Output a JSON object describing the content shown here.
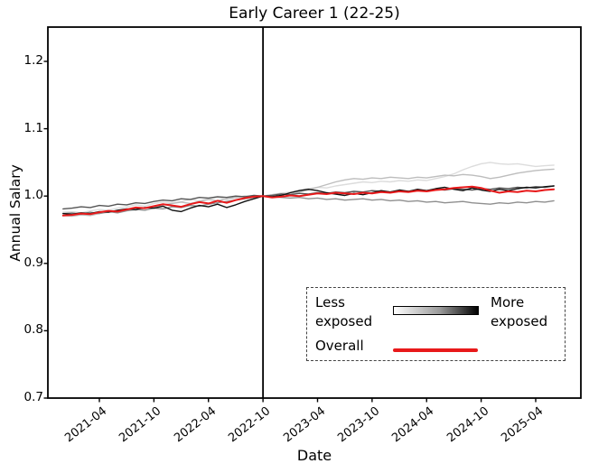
{
  "chart_data": {
    "type": "line",
    "title": "Early Career 1 (22-25)",
    "xlabel": "Date",
    "ylabel": "Annual Salary",
    "ylim": [
      0.7,
      1.25
    ],
    "yticks": [
      0.7,
      0.8,
      0.9,
      1.0,
      1.1,
      1.2
    ],
    "xticks": [
      "2021-04",
      "2021-10",
      "2022-04",
      "2022-10",
      "2023-04",
      "2023-10",
      "2024-04",
      "2024-10",
      "2025-04"
    ],
    "vline_at": "2022-10",
    "grid": false,
    "x": [
      "2020-12",
      "2021-01",
      "2021-02",
      "2021-03",
      "2021-04",
      "2021-05",
      "2021-06",
      "2021-07",
      "2021-08",
      "2021-09",
      "2021-10",
      "2021-11",
      "2021-12",
      "2022-01",
      "2022-02",
      "2022-03",
      "2022-04",
      "2022-05",
      "2022-06",
      "2022-07",
      "2022-08",
      "2022-09",
      "2022-10",
      "2022-11",
      "2022-12",
      "2023-01",
      "2023-02",
      "2023-03",
      "2023-04",
      "2023-05",
      "2023-06",
      "2023-07",
      "2023-08",
      "2023-09",
      "2023-10",
      "2023-11",
      "2023-12",
      "2024-01",
      "2024-02",
      "2024-03",
      "2024-04",
      "2024-05",
      "2024-06",
      "2024-07",
      "2024-08",
      "2024-09",
      "2024-10",
      "2024-11",
      "2024-12",
      "2025-01",
      "2025-02",
      "2025-03",
      "2025-04",
      "2025-05",
      "2025-06"
    ],
    "series": [
      {
        "name": "exposure-quintile-1-least",
        "color": "#dcdcdc",
        "width": 1.4,
        "values": [
          0.976,
          0.977,
          0.975,
          0.978,
          0.98,
          0.979,
          0.982,
          0.984,
          0.987,
          0.985,
          0.989,
          0.991,
          0.99,
          0.992,
          0.995,
          0.993,
          0.996,
          0.998,
          0.995,
          0.997,
          0.999,
          1.001,
          1.0,
          1.002,
          1.004,
          1.006,
          1.009,
          1.011,
          1.013,
          1.012,
          1.015,
          1.017,
          1.019,
          1.021,
          1.02,
          1.022,
          1.021,
          1.023,
          1.022,
          1.024,
          1.023,
          1.026,
          1.029,
          1.033,
          1.039,
          1.044,
          1.048,
          1.05,
          1.048,
          1.047,
          1.048,
          1.046,
          1.044,
          1.045,
          1.046
        ]
      },
      {
        "name": "exposure-quintile-2",
        "color": "#bdbdbd",
        "width": 1.4,
        "values": [
          0.971,
          0.97,
          0.972,
          0.971,
          0.974,
          0.976,
          0.978,
          0.98,
          0.979,
          0.982,
          0.984,
          0.987,
          0.989,
          0.991,
          0.989,
          0.992,
          0.995,
          0.993,
          0.996,
          0.998,
          1.0,
          0.999,
          1.0,
          1.002,
          1.004,
          1.003,
          1.006,
          1.009,
          1.013,
          1.017,
          1.021,
          1.024,
          1.026,
          1.025,
          1.027,
          1.026,
          1.028,
          1.027,
          1.026,
          1.028,
          1.027,
          1.029,
          1.031,
          1.03,
          1.032,
          1.031,
          1.029,
          1.026,
          1.028,
          1.031,
          1.034,
          1.036,
          1.038,
          1.039,
          1.04
        ]
      },
      {
        "name": "exposure-quintile-3",
        "color": "#8f8f8f",
        "width": 1.4,
        "values": [
          0.974,
          0.975,
          0.973,
          0.976,
          0.974,
          0.977,
          0.975,
          0.978,
          0.98,
          0.979,
          0.982,
          0.981,
          0.984,
          0.983,
          0.986,
          0.985,
          0.988,
          0.99,
          0.992,
          0.994,
          0.996,
          0.998,
          1.0,
          0.999,
          0.998,
          0.997,
          0.998,
          0.996,
          0.997,
          0.995,
          0.996,
          0.994,
          0.995,
          0.996,
          0.994,
          0.995,
          0.993,
          0.994,
          0.992,
          0.993,
          0.991,
          0.992,
          0.99,
          0.991,
          0.992,
          0.99,
          0.989,
          0.988,
          0.99,
          0.989,
          0.991,
          0.99,
          0.992,
          0.991,
          0.993
        ]
      },
      {
        "name": "exposure-quintile-4",
        "color": "#555555",
        "width": 1.4,
        "values": [
          0.981,
          0.982,
          0.984,
          0.983,
          0.986,
          0.985,
          0.988,
          0.987,
          0.99,
          0.989,
          0.992,
          0.994,
          0.993,
          0.996,
          0.995,
          0.998,
          0.997,
          0.999,
          0.998,
          1.0,
          0.999,
          1.001,
          1.0,
          1.001,
          1.003,
          1.002,
          1.004,
          1.003,
          1.005,
          1.004,
          1.006,
          1.005,
          1.007,
          1.006,
          1.008,
          1.007,
          1.006,
          1.008,
          1.007,
          1.009,
          1.008,
          1.01,
          1.009,
          1.011,
          1.01,
          1.009,
          1.011,
          1.01,
          1.012,
          1.011,
          1.013,
          1.012,
          1.014,
          1.013,
          1.015
        ]
      },
      {
        "name": "exposure-quintile-5-most",
        "color": "#111111",
        "width": 1.4,
        "values": [
          0.974,
          0.973,
          0.975,
          0.974,
          0.977,
          0.976,
          0.979,
          0.981,
          0.98,
          0.983,
          0.982,
          0.985,
          0.979,
          0.977,
          0.982,
          0.986,
          0.984,
          0.988,
          0.983,
          0.987,
          0.992,
          0.996,
          1.0,
          0.999,
          1.001,
          1.005,
          1.008,
          1.01,
          1.008,
          1.005,
          1.003,
          1.001,
          1.004,
          1.002,
          1.005,
          1.008,
          1.006,
          1.009,
          1.007,
          1.01,
          1.008,
          1.011,
          1.013,
          1.01,
          1.008,
          1.012,
          1.009,
          1.007,
          1.01,
          1.008,
          1.011,
          1.013,
          1.012,
          1.014,
          1.015
        ]
      },
      {
        "name": "overall",
        "color": "#e8191a",
        "width": 2,
        "values": [
          0.971,
          0.972,
          0.974,
          0.973,
          0.976,
          0.978,
          0.977,
          0.98,
          0.983,
          0.982,
          0.985,
          0.988,
          0.986,
          0.984,
          0.988,
          0.991,
          0.989,
          0.993,
          0.99,
          0.994,
          0.997,
          0.999,
          1.0,
          0.998,
          0.999,
          1.001,
          1.0,
          1.002,
          1.004,
          1.003,
          1.005,
          1.004,
          1.003,
          1.005,
          1.004,
          1.006,
          1.005,
          1.007,
          1.006,
          1.008,
          1.007,
          1.009,
          1.01,
          1.012,
          1.013,
          1.014,
          1.012,
          1.008,
          1.005,
          1.007,
          1.006,
          1.008,
          1.007,
          1.009,
          1.01
        ]
      }
    ],
    "legend": {
      "position": "lower right",
      "less_line1": "Less",
      "less_line2": "exposed",
      "more_line1": "More",
      "more_line2": "exposed",
      "overall_label": "Overall",
      "gradient": [
        "#ffffff",
        "#000000"
      ],
      "overall_color": "#e8191a"
    }
  }
}
